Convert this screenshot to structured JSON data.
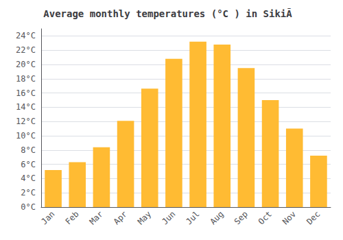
{
  "chart_data": {
    "type": "bar",
    "title": "Average monthly temperatures (°C ) in SikiÃ",
    "categories": [
      "Jan",
      "Feb",
      "Mar",
      "Apr",
      "May",
      "Jun",
      "Jul",
      "Aug",
      "Sep",
      "Oct",
      "Nov",
      "Dec"
    ],
    "values": [
      5.2,
      6.3,
      8.4,
      12.1,
      16.6,
      20.8,
      23.2,
      22.8,
      19.5,
      15.0,
      11.0,
      7.2
    ],
    "color": "#FFBB33",
    "ylim": [
      0,
      25
    ],
    "yticks": [
      {
        "value": 0,
        "label": "0°C"
      },
      {
        "value": 2,
        "label": "2°C"
      },
      {
        "value": 4,
        "label": "4°C"
      },
      {
        "value": 6,
        "label": "6°C"
      },
      {
        "value": 8,
        "label": "8°C"
      },
      {
        "value": 10,
        "label": "10°C"
      },
      {
        "value": 12,
        "label": "12°C"
      },
      {
        "value": 14,
        "label": "14°C"
      },
      {
        "value": 16,
        "label": "16°C"
      },
      {
        "value": 18,
        "label": "18°C"
      },
      {
        "value": 20,
        "label": "20°C"
      },
      {
        "value": 22,
        "label": "22°C"
      },
      {
        "value": 24,
        "label": "24°C"
      }
    ],
    "grid": true
  }
}
